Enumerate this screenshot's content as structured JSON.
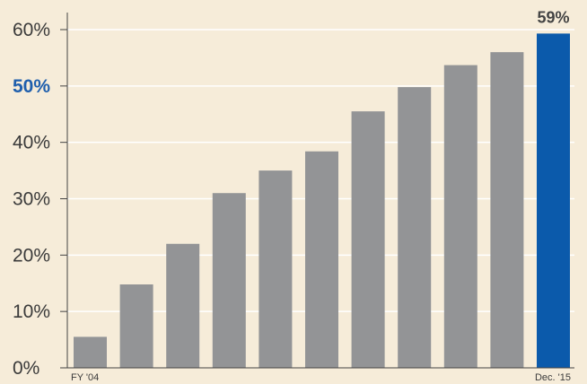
{
  "chart_data": {
    "type": "bar",
    "categories": [
      "FY '04",
      "",
      "",
      "",
      "",
      "",
      "",
      "",
      "",
      "",
      "Dec. '15"
    ],
    "values": [
      5.5,
      14.8,
      22,
      31,
      35,
      38.4,
      45.5,
      49.8,
      53.7,
      56,
      59.3
    ],
    "ylim": [
      0,
      60
    ],
    "yticks": [
      {
        "value": 0,
        "label": "0%"
      },
      {
        "value": 10,
        "label": "10%"
      },
      {
        "value": 20,
        "label": "20%"
      },
      {
        "value": 30,
        "label": "30%"
      },
      {
        "value": 40,
        "label": "40%"
      },
      {
        "value": 50,
        "label": "50%",
        "highlight": true
      },
      {
        "value": 60,
        "label": "60%"
      }
    ],
    "data_labels": [
      {
        "index": 10,
        "text": "59%"
      }
    ],
    "highlight_index": 10,
    "colors": {
      "bar": "#939496",
      "highlight_bar": "#0b5aab",
      "gridline": "#ffffff",
      "axis": "#444444",
      "background": "#f6ecd9"
    },
    "grid": true,
    "title": "",
    "xlabel": "",
    "ylabel": ""
  }
}
